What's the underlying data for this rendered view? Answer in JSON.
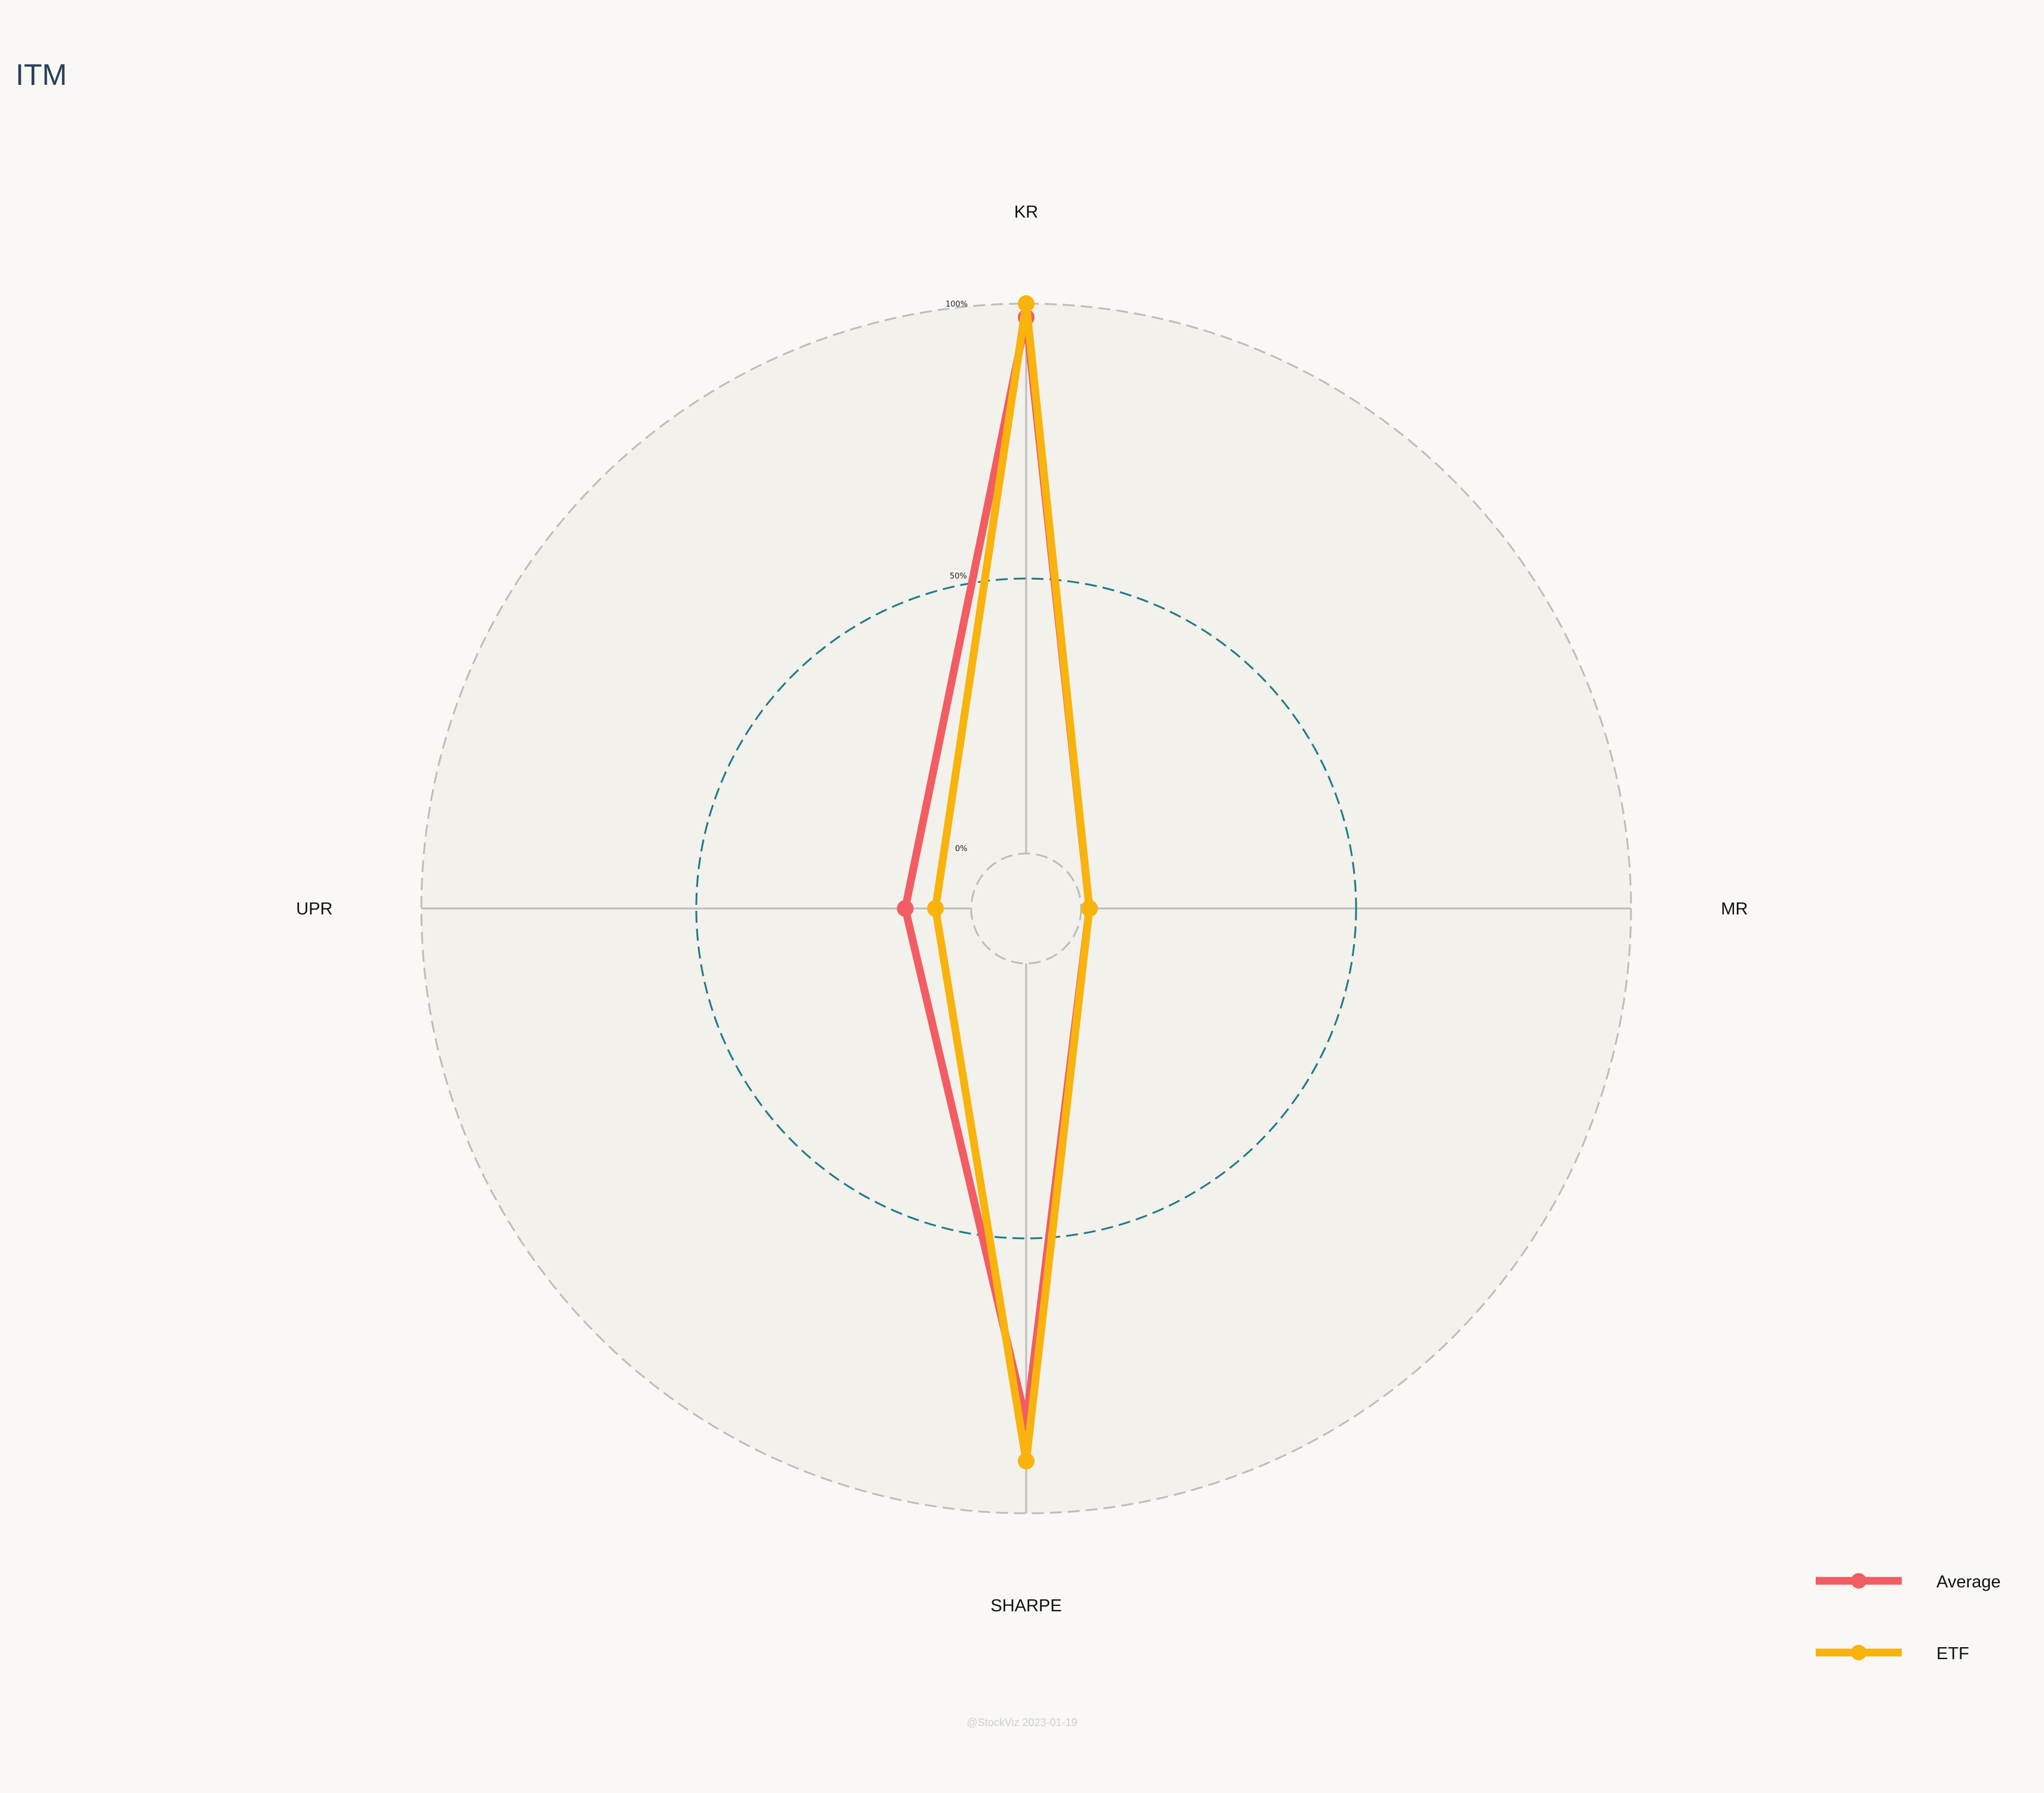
{
  "title": "ITM",
  "footer": "@StockViz 2023-01-19",
  "colors": {
    "background": "#f9f8f4",
    "plot_background": "#f2f1ec",
    "grid": "#bdbdbd",
    "mid_ring": "#1f7a85",
    "average": "#f25c63",
    "etf": "#f8b30d"
  },
  "chart_data": {
    "type": "radar",
    "axes": [
      "KR",
      "MR",
      "SHARPE",
      "UPR"
    ],
    "rlim": [
      -10,
      100
    ],
    "ticks": [
      {
        "value": 0,
        "label": "0%"
      },
      {
        "value": 50,
        "label": "50%"
      },
      {
        "value": 100,
        "label": "100%"
      }
    ],
    "legend_position": "bottom-right",
    "series": [
      {
        "name": "Average",
        "color": "#f25c63",
        "values": [
          97.5,
          1.5,
          83.5,
          12
        ]
      },
      {
        "name": "ETF",
        "color": "#f8b30d",
        "values": [
          100,
          1.5,
          90.5,
          6.5
        ]
      }
    ]
  }
}
